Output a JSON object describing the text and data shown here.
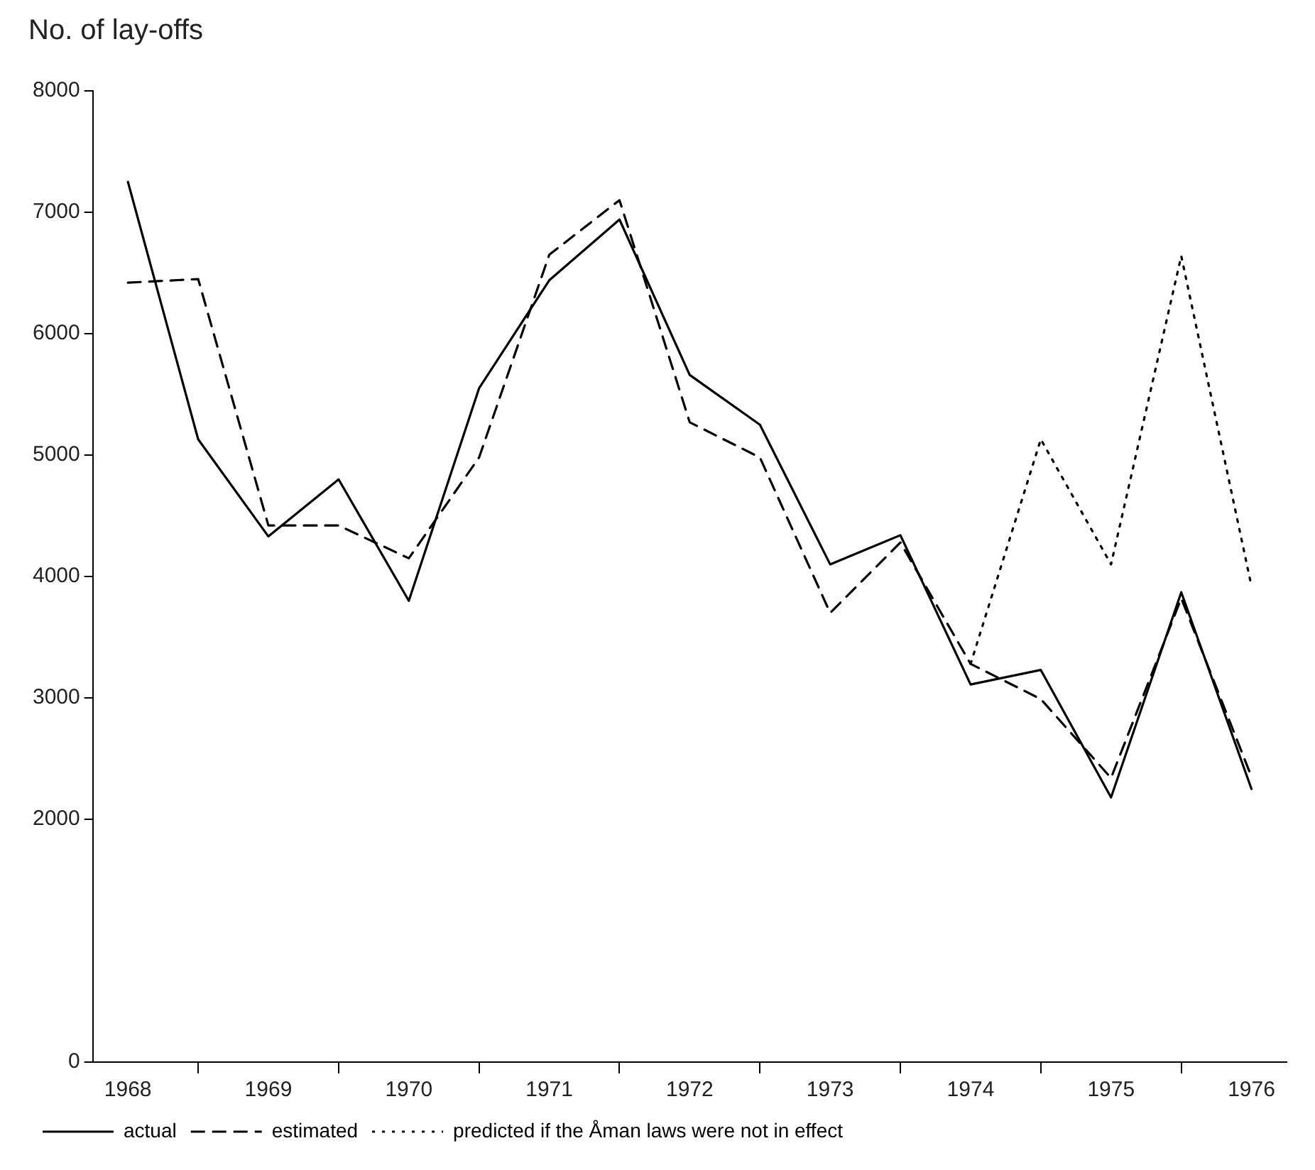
{
  "chart_data": {
    "type": "line",
    "ylabel": "No. of lay-offs",
    "categories": [
      "1968",
      null,
      "1969",
      null,
      "1970",
      null,
      "1971",
      null,
      "1972",
      null,
      "1973",
      null,
      "1974",
      null,
      "1975",
      null,
      "1976"
    ],
    "ylim": [
      0,
      8000
    ],
    "yticks": [
      0,
      2000,
      3000,
      4000,
      5000,
      6000,
      7000,
      8000
    ],
    "grid": false,
    "legend": "bottom left",
    "marker": "none",
    "series": [
      {
        "name": "actual",
        "color": "#000000",
        "line_style": "solid",
        "values": [
          7250,
          5130,
          4330,
          4800,
          3800,
          5550,
          6440,
          6940,
          5660,
          5250,
          4100,
          4340,
          3110,
          3230,
          2180,
          3870,
          2250
        ]
      },
      {
        "name": "estimated",
        "color": "#000000",
        "line_style": "dashed",
        "values": [
          6420,
          6450,
          4420,
          4420,
          4150,
          4980,
          6650,
          7100,
          5270,
          4980,
          3700,
          4280,
          3280,
          2990,
          2340,
          3820,
          2350
        ]
      },
      {
        "name": "predicted if the Åman laws were not in effect",
        "color": "#000000",
        "line_style": "dotted",
        "values": [
          null,
          null,
          null,
          null,
          null,
          null,
          null,
          null,
          null,
          null,
          null,
          null,
          3280,
          5130,
          4100,
          6640,
          3920
        ]
      }
    ]
  }
}
